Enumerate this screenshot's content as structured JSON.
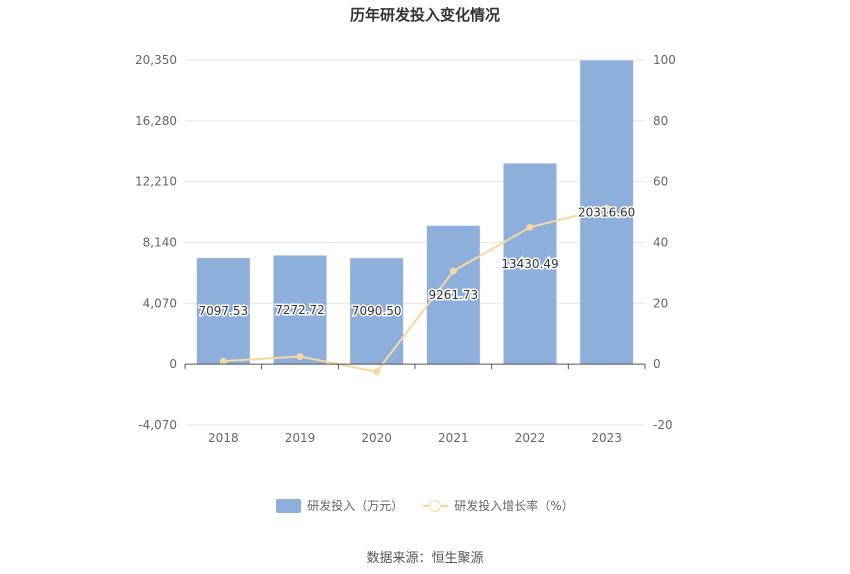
{
  "chart_data": {
    "type": "bar",
    "title": "历年研发投入变化情况",
    "categories": [
      "2018",
      "2019",
      "2020",
      "2021",
      "2022",
      "2023"
    ],
    "series": [
      {
        "name": "研发投入（万元）",
        "type": "bar",
        "axis": "left",
        "values": [
          7097.53,
          7272.72,
          7090.5,
          9261.73,
          13430.49,
          20316.6
        ],
        "labels": [
          "7097.53",
          "7272.72",
          "7090.50",
          "9261.73",
          "13430.49",
          "20316.60"
        ],
        "color": "#8eaedb"
      },
      {
        "name": "研发投入增长率（%）",
        "type": "line",
        "axis": "right",
        "values": [
          1.0,
          2.5,
          -2.5,
          30.6,
          45.0,
          51.3
        ],
        "color": "#f5d9a3"
      }
    ],
    "y_left": {
      "ylim": [
        -4070,
        20350
      ],
      "ticks": [
        20350,
        16280,
        12210,
        8140,
        4070,
        0,
        -4070
      ],
      "tick_labels": [
        "20,350",
        "16,280",
        "12,210",
        "8,140",
        "4,070",
        "0",
        "-4,070"
      ]
    },
    "y_right": {
      "ylim": [
        -20,
        100
      ],
      "ticks": [
        100,
        80,
        60,
        40,
        20,
        0,
        -20
      ],
      "tick_labels": [
        "100",
        "80",
        "60",
        "40",
        "20",
        "0",
        "-20"
      ]
    },
    "grid": true,
    "legend_position": "bottom"
  },
  "source": "数据来源：恒生聚源"
}
